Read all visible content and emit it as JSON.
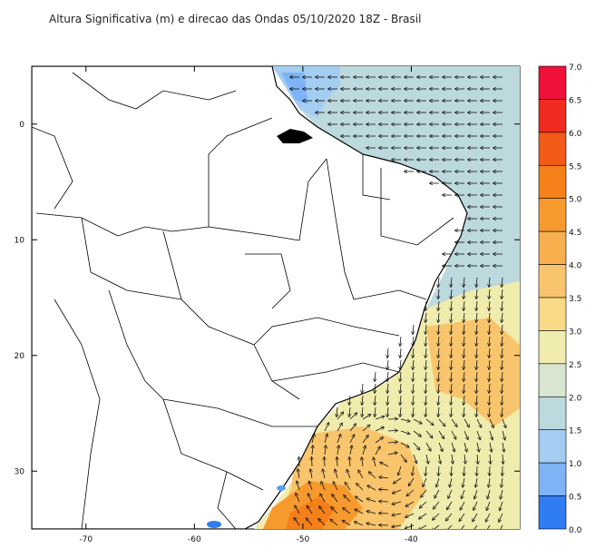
{
  "title": "Altura Significativa (m) e direcao das Ondas 05/10/2020 18Z - Brasil",
  "map": {
    "lon_range": [
      -75,
      -30
    ],
    "lat_range": [
      -35,
      5
    ],
    "lon_ticks": [
      -70,
      -60,
      -50,
      -40
    ],
    "lon_tick_labels": [
      "-70",
      "-60",
      "-50",
      "-40"
    ],
    "lat_ticks": [
      0,
      -10,
      -20,
      -30
    ],
    "lat_tick_labels": [
      "0",
      "10",
      "20",
      "30"
    ]
  },
  "colorbar": {
    "labels": [
      "7.0",
      "6.5",
      "6.0",
      "5.5",
      "5.0",
      "4.5",
      "4.0",
      "3.5",
      "3.0",
      "2.5",
      "2.0",
      "1.5",
      "1.0",
      "0.5",
      "0.0"
    ],
    "colors": [
      "#f0103a",
      "#f02a20",
      "#f25a18",
      "#f57f18",
      "#f79a2e",
      "#f8b04f",
      "#f9c56c",
      "#fad987",
      "#f0ecad",
      "#d8e6cf",
      "#bcd9dd",
      "#a4cdf2",
      "#7eb4f6",
      "#5a99f5",
      "#2f7cf3"
    ]
  },
  "fields": {
    "ocean_base": "#bcd9dd",
    "near_coast_low": "#a4cdf2",
    "warm_zone": "#f9c56c",
    "hot_zone": "#f57f18"
  }
}
